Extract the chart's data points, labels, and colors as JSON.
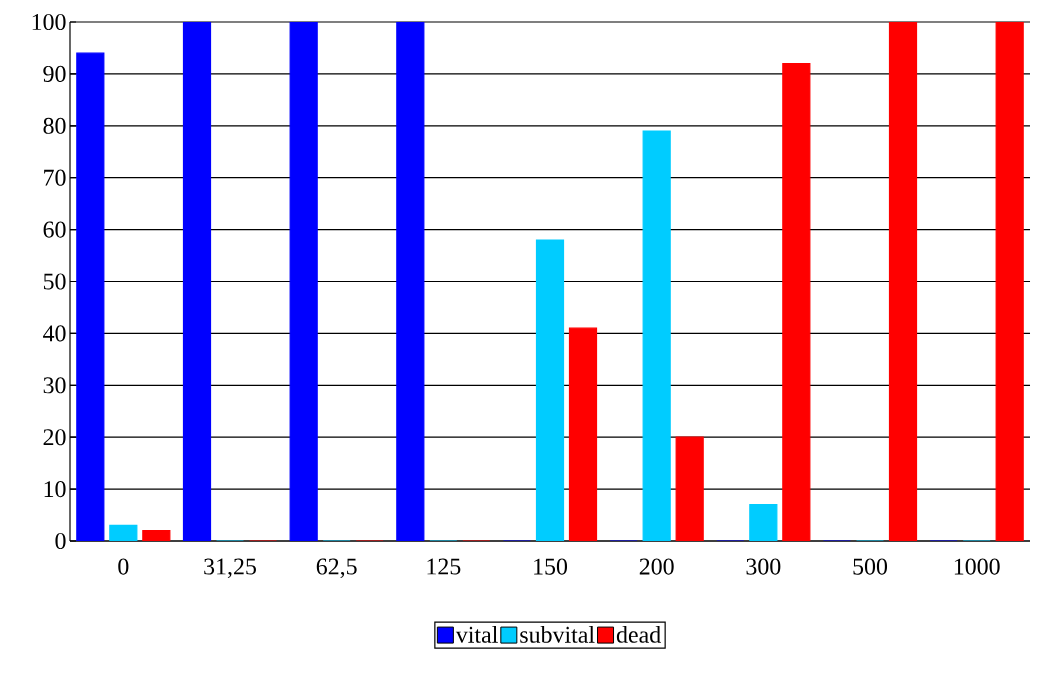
{
  "chart_data": {
    "type": "bar",
    "categories": [
      "0",
      "31,25",
      "62,5",
      "125",
      "150",
      "200",
      "300",
      "500",
      "1000"
    ],
    "series": [
      {
        "name": "vital",
        "color": "#0000ff",
        "values": [
          94,
          100,
          100,
          100,
          0,
          0,
          0,
          0,
          0
        ]
      },
      {
        "name": "subvital",
        "color": "#00ccff",
        "values": [
          3,
          0,
          0,
          0,
          58,
          79,
          7,
          0,
          0
        ]
      },
      {
        "name": "dead",
        "color": "#ff0000",
        "values": [
          2,
          0,
          0,
          0,
          41,
          20,
          92,
          100,
          100
        ]
      }
    ],
    "ylim": [
      0,
      100
    ],
    "yticks": [
      0,
      10,
      20,
      30,
      40,
      50,
      60,
      70,
      80,
      90,
      100
    ],
    "grid": "y",
    "legend": "bottom"
  }
}
